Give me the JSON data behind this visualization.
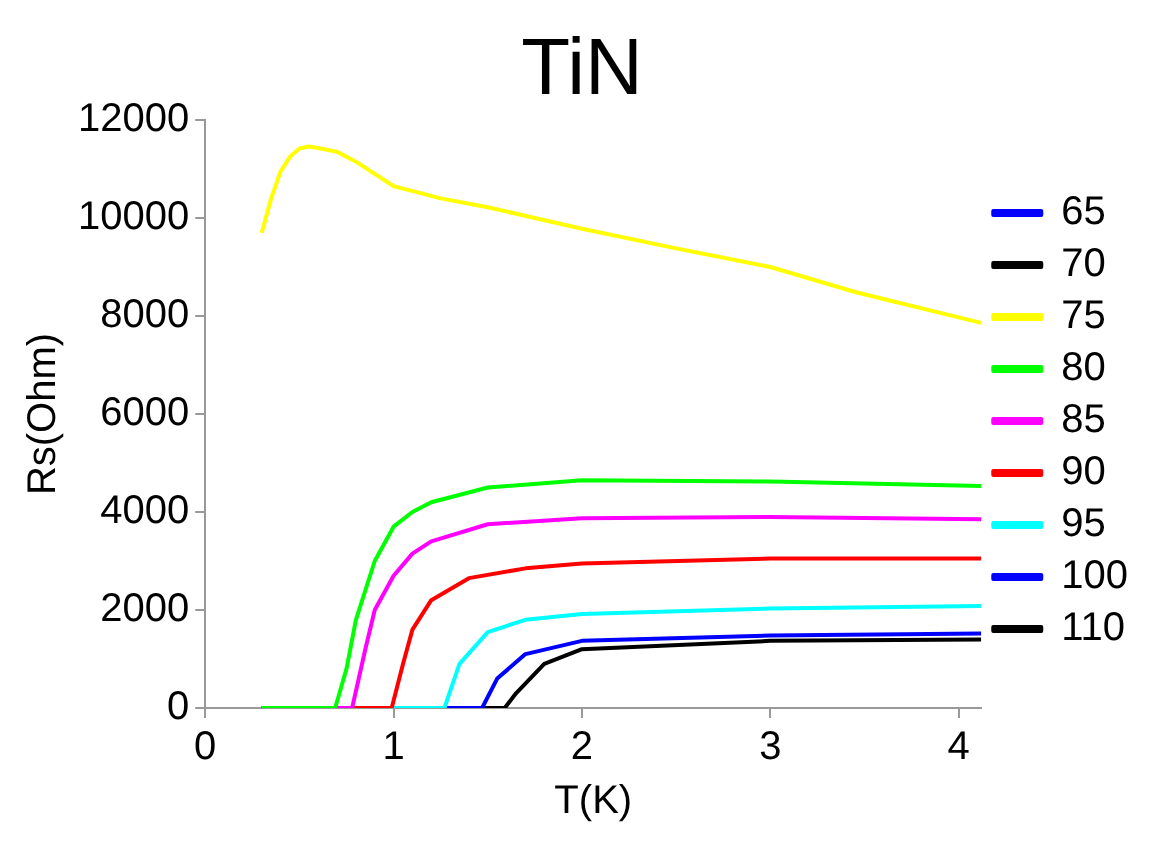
{
  "chart_data": {
    "type": "line",
    "title": "TiN",
    "xlabel": "T(K)",
    "ylabel": "Rs(Ohm)",
    "xlim": [
      0,
      4.12
    ],
    "xticks": [
      0,
      1,
      2,
      3,
      4
    ],
    "ylim": [
      0,
      12000
    ],
    "yticks": [
      0,
      2000,
      4000,
      6000,
      8000,
      10000,
      12000
    ],
    "grid": false,
    "legend": "right",
    "marker": "none",
    "line_style": "solid",
    "series": [
      {
        "name": "65",
        "color": "#0000ff"
      },
      {
        "name": "70",
        "color": "#000000"
      },
      {
        "name": "75",
        "color": "#ffff00",
        "x": [
          0.3,
          0.35,
          0.4,
          0.45,
          0.5,
          0.55,
          0.6,
          0.7,
          0.8,
          1,
          1.25,
          1.5,
          1.75,
          2,
          2.5,
          3,
          3.46,
          4.12
        ],
        "values": [
          9700,
          10400,
          10950,
          11250,
          11420,
          11460,
          11430,
          11350,
          11150,
          10650,
          10400,
          10220,
          10000,
          9780,
          9380,
          9000,
          8480,
          7860
        ]
      },
      {
        "name": "80",
        "color": "#00ff00",
        "x": [
          0.3,
          0.69,
          0.75,
          0.8,
          0.9,
          1,
          1.1,
          1.2,
          1.5,
          2,
          3,
          4.12
        ],
        "values": [
          0,
          0,
          800,
          1800,
          3000,
          3700,
          4000,
          4200,
          4500,
          4650,
          4620,
          4530
        ]
      },
      {
        "name": "85",
        "color": "#ff00ff",
        "x": [
          0.3,
          0.78,
          0.85,
          0.9,
          1,
          1.1,
          1.2,
          1.5,
          2,
          3,
          4.12
        ],
        "values": [
          0,
          0,
          1200,
          2000,
          2700,
          3150,
          3400,
          3750,
          3870,
          3900,
          3850
        ]
      },
      {
        "name": "90",
        "color": "#ff0000",
        "x": [
          0.3,
          0.99,
          1.05,
          1.1,
          1.2,
          1.4,
          1.7,
          2,
          3,
          4.12
        ],
        "values": [
          0,
          0,
          900,
          1600,
          2200,
          2650,
          2850,
          2950,
          3050,
          3050
        ]
      },
      {
        "name": "95",
        "color": "#00ffff",
        "x": [
          0.3,
          1.27,
          1.35,
          1.5,
          1.7,
          2,
          3,
          4.12
        ],
        "values": [
          0,
          0,
          900,
          1550,
          1800,
          1920,
          2030,
          2080
        ]
      },
      {
        "name": "100",
        "color": "#0000ff",
        "x": [
          0.3,
          1.47,
          1.55,
          1.7,
          2,
          3,
          4.12
        ],
        "values": [
          0,
          0,
          600,
          1100,
          1370,
          1480,
          1520
        ]
      },
      {
        "name": "110",
        "color": "#000000",
        "x": [
          0.3,
          1.59,
          1.65,
          1.8,
          2,
          3,
          4.12
        ],
        "values": [
          0,
          0,
          300,
          900,
          1200,
          1370,
          1400
        ]
      }
    ]
  }
}
